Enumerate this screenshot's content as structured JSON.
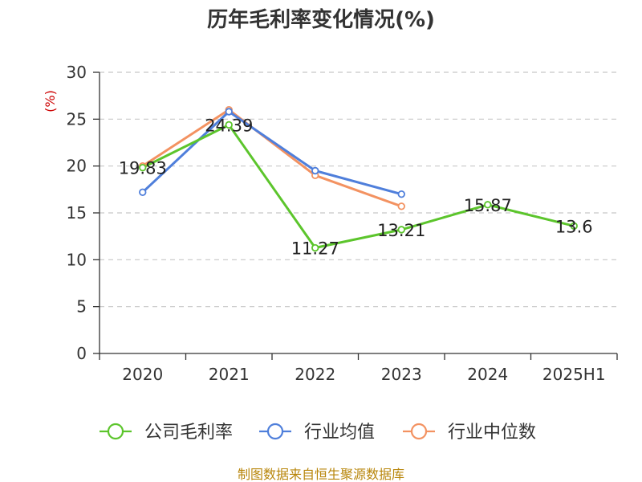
{
  "chart_data": {
    "type": "line",
    "title": "历年毛利率变化情况(%)",
    "ylabel": "(%)",
    "xlabel": "",
    "categories": [
      "2020",
      "2021",
      "2022",
      "2023",
      "2024",
      "2025H1"
    ],
    "ylim": [
      0,
      30
    ],
    "yticks": [
      0,
      5,
      10,
      15,
      20,
      25,
      30
    ],
    "grid": "horizontal-dashed",
    "legend_position": "bottom",
    "series": [
      {
        "name": "公司毛利率",
        "color": "#5cc52c",
        "values": [
          19.83,
          24.39,
          11.27,
          13.21,
          15.87,
          13.6
        ],
        "labels": [
          "19.83",
          "24.39",
          "11.27",
          "13.21",
          "15.87",
          "13.6"
        ]
      },
      {
        "name": "行业均值",
        "color": "#4f7fdb",
        "values": [
          17.2,
          25.8,
          19.5,
          17.0,
          null,
          null
        ]
      },
      {
        "name": "行业中位数",
        "color": "#f39261",
        "values": [
          20.0,
          26.0,
          19.0,
          15.7,
          null,
          null
        ]
      }
    ]
  },
  "source": "制图数据来自恒生聚源数据库"
}
